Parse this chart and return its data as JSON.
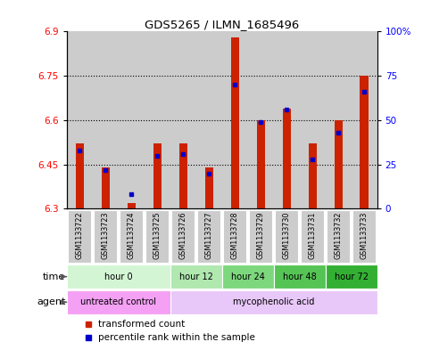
{
  "title": "GDS5265 / ILMN_1685496",
  "samples": [
    "GSM1133722",
    "GSM1133723",
    "GSM1133724",
    "GSM1133725",
    "GSM1133726",
    "GSM1133727",
    "GSM1133728",
    "GSM1133729",
    "GSM1133730",
    "GSM1133731",
    "GSM1133732",
    "GSM1133733"
  ],
  "red_values": [
    6.52,
    6.44,
    6.32,
    6.52,
    6.52,
    6.44,
    6.88,
    6.6,
    6.64,
    6.52,
    6.6,
    6.75
  ],
  "blue_values": [
    33,
    22,
    8,
    30,
    31,
    20,
    70,
    49,
    56,
    28,
    43,
    66
  ],
  "y_min": 6.3,
  "y_max": 6.9,
  "y_ticks": [
    6.3,
    6.45,
    6.6,
    6.75,
    6.9
  ],
  "y_right_ticks": [
    0,
    25,
    50,
    75,
    100
  ],
  "y_right_labels": [
    "0",
    "25",
    "50",
    "75",
    "100%"
  ],
  "time_groups": [
    {
      "label": "hour 0",
      "start": 0,
      "end": 3,
      "color": "#d4f5d4"
    },
    {
      "label": "hour 12",
      "start": 4,
      "end": 5,
      "color": "#b0e8b0"
    },
    {
      "label": "hour 24",
      "start": 6,
      "end": 7,
      "color": "#7dd87d"
    },
    {
      "label": "hour 48",
      "start": 8,
      "end": 9,
      "color": "#55c455"
    },
    {
      "label": "hour 72",
      "start": 10,
      "end": 11,
      "color": "#33b033"
    }
  ],
  "agent_groups": [
    {
      "label": "untreated control",
      "start": 0,
      "end": 3,
      "color": "#f4a0f4"
    },
    {
      "label": "mycophenolic acid",
      "start": 4,
      "end": 11,
      "color": "#e8c8f8"
    }
  ],
  "bar_color": "#cc2200",
  "dot_color": "#0000cc",
  "legend_red": "transformed count",
  "legend_blue": "percentile rank within the sample",
  "bg_color": "#ffffff",
  "sample_bg": "#cccccc"
}
